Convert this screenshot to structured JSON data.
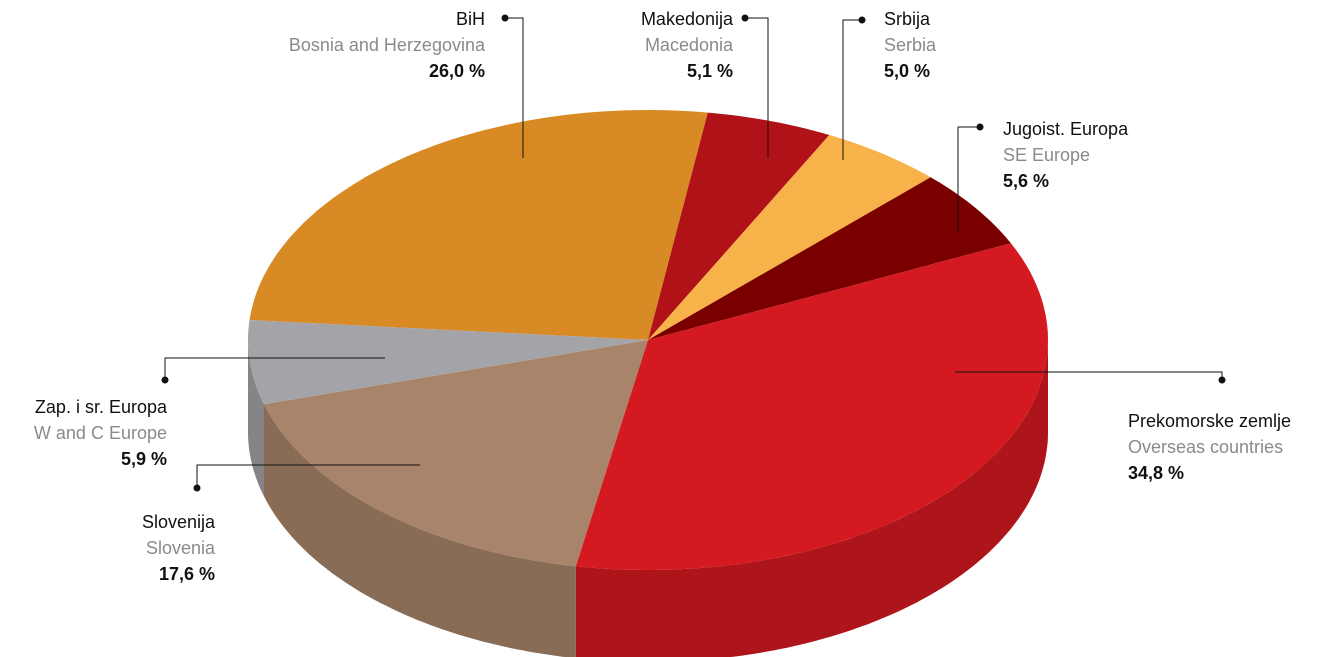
{
  "chart_data": {
    "type": "pie",
    "categories": [
      "BiH",
      "Makedonija",
      "Srbija",
      "Jugoist. Europa",
      "Prekomorske zemlje",
      "Slovenija",
      "Zap. i sr. Europa"
    ],
    "category_translations": [
      "Bosnia and Herzegovina",
      "Macedonia",
      "Serbia",
      "SE Europe",
      "Overseas countries",
      "Slovenia",
      "W and C Europe"
    ],
    "values": [
      26.0,
      5.1,
      5.0,
      5.6,
      34.8,
      17.6,
      5.9
    ],
    "value_labels": [
      "26,0 %",
      "5,1 %",
      "5,0 %",
      "5,6 %",
      "34,8 %",
      "17,6 %",
      "5,9 %"
    ],
    "colors": [
      "#d88a24",
      "#b01217",
      "#f7b24a",
      "#7a0000",
      "#d41a20",
      "#a8846a",
      "#a3a3a8"
    ]
  }
}
